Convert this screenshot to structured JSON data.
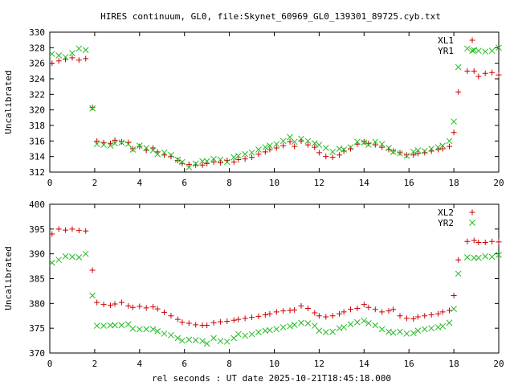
{
  "title": "HIRES continuum, GL0, file:Skynet_60969_GL0_139301_89725.cyb.txt",
  "xlabel": "rel seconds : UT date 2025-10-21T18:45:18.000",
  "colors": {
    "xl": "#cc0000",
    "yr": "#22bb22"
  },
  "chart_data": [
    {
      "type": "scatter",
      "ylabel": "Uncalibrated",
      "xlim": [
        0,
        20
      ],
      "ylim": [
        312,
        330
      ],
      "xticks": [
        0,
        2,
        4,
        6,
        8,
        10,
        12,
        14,
        16,
        18,
        20
      ],
      "yticks": [
        312,
        314,
        316,
        318,
        320,
        322,
        324,
        326,
        328,
        330
      ],
      "legend_position": "top-right",
      "series": [
        {
          "name": "XL1",
          "marker": "plus",
          "color": "#cc0000",
          "x": [
            0.1,
            0.4,
            0.7,
            1.0,
            1.3,
            1.6,
            1.9,
            2.1,
            2.4,
            2.7,
            2.9,
            3.2,
            3.5,
            3.7,
            4.0,
            4.3,
            4.6,
            4.8,
            5.1,
            5.4,
            5.7,
            5.9,
            6.2,
            6.5,
            6.8,
            7.0,
            7.3,
            7.6,
            7.9,
            8.2,
            8.4,
            8.7,
            9.0,
            9.3,
            9.6,
            9.8,
            10.1,
            10.4,
            10.7,
            10.9,
            11.2,
            11.5,
            11.8,
            12.0,
            12.3,
            12.6,
            12.9,
            13.1,
            13.4,
            13.7,
            14.0,
            14.2,
            14.5,
            14.8,
            15.1,
            15.3,
            15.6,
            15.9,
            16.2,
            16.4,
            16.7,
            17.0,
            17.3,
            17.5,
            17.8,
            18.0,
            18.2,
            18.6,
            18.9,
            19.1,
            19.4,
            19.7,
            20.0
          ],
          "y": [
            326.0,
            326.3,
            326.5,
            326.7,
            326.4,
            326.6,
            320.3,
            316.0,
            315.8,
            315.7,
            316.1,
            315.9,
            315.8,
            315.0,
            315.3,
            314.8,
            315.1,
            314.6,
            314.2,
            314.0,
            313.5,
            313.1,
            313.0,
            312.9,
            312.9,
            313.1,
            313.3,
            313.2,
            313.5,
            313.3,
            313.6,
            313.7,
            313.9,
            314.3,
            314.6,
            314.9,
            315.1,
            315.4,
            315.9,
            315.3,
            316.0,
            315.5,
            315.2,
            314.5,
            314.0,
            313.9,
            314.2,
            314.7,
            315.0,
            315.6,
            315.9,
            315.7,
            315.5,
            315.2,
            314.9,
            314.7,
            314.5,
            314.2,
            314.2,
            314.4,
            314.5,
            314.7,
            314.9,
            315.0,
            315.3,
            317.1,
            322.3,
            325.0,
            325.0,
            324.3,
            324.7,
            324.8,
            324.5
          ]
        },
        {
          "name": "YR1",
          "marker": "cross",
          "color": "#22bb22",
          "x": [
            0.1,
            0.4,
            0.7,
            1.0,
            1.3,
            1.6,
            1.9,
            2.1,
            2.4,
            2.7,
            2.9,
            3.2,
            3.5,
            3.7,
            4.0,
            4.3,
            4.6,
            4.8,
            5.1,
            5.4,
            5.7,
            5.9,
            6.2,
            6.5,
            6.8,
            7.0,
            7.3,
            7.6,
            7.9,
            8.2,
            8.4,
            8.7,
            9.0,
            9.3,
            9.6,
            9.8,
            10.1,
            10.4,
            10.7,
            10.9,
            11.2,
            11.5,
            11.8,
            12.0,
            12.3,
            12.6,
            12.9,
            13.1,
            13.4,
            13.7,
            14.0,
            14.2,
            14.5,
            14.8,
            15.1,
            15.3,
            15.6,
            15.9,
            16.2,
            16.4,
            16.7,
            17.0,
            17.3,
            17.5,
            17.8,
            18.0,
            18.2,
            18.6,
            18.9,
            19.1,
            19.4,
            19.7,
            20.0
          ],
          "y": [
            327.2,
            327.0,
            326.8,
            327.3,
            327.9,
            327.7,
            320.2,
            315.6,
            315.5,
            315.4,
            315.7,
            315.8,
            315.6,
            314.9,
            315.4,
            315.1,
            314.8,
            314.3,
            314.5,
            314.2,
            313.6,
            313.3,
            312.6,
            313.1,
            313.4,
            313.4,
            313.7,
            313.6,
            313.3,
            313.9,
            314.1,
            314.3,
            314.5,
            314.9,
            315.2,
            315.4,
            315.6,
            316.0,
            316.5,
            315.9,
            316.3,
            316.0,
            315.7,
            315.5,
            315.1,
            314.6,
            315.0,
            314.9,
            315.2,
            315.9,
            315.8,
            315.5,
            315.9,
            315.6,
            315.1,
            314.6,
            314.4,
            314.1,
            314.6,
            314.8,
            314.7,
            315.0,
            315.2,
            315.4,
            316.0,
            318.5,
            325.5,
            327.9,
            327.7,
            327.6,
            327.5,
            327.6,
            328.0
          ]
        }
      ]
    },
    {
      "type": "scatter",
      "ylabel": "Uncalibrated",
      "xlim": [
        0,
        20
      ],
      "ylim": [
        370,
        400
      ],
      "xticks": [
        0,
        2,
        4,
        6,
        8,
        10,
        12,
        14,
        16,
        18,
        20
      ],
      "yticks": [
        370,
        375,
        380,
        385,
        390,
        395,
        400
      ],
      "legend_position": "top-right",
      "series": [
        {
          "name": "XL2",
          "marker": "plus",
          "color": "#cc0000",
          "x": [
            0.1,
            0.4,
            0.7,
            1.0,
            1.3,
            1.6,
            1.9,
            2.1,
            2.4,
            2.7,
            2.9,
            3.2,
            3.5,
            3.7,
            4.0,
            4.3,
            4.6,
            4.8,
            5.1,
            5.4,
            5.7,
            5.9,
            6.2,
            6.5,
            6.8,
            7.0,
            7.3,
            7.6,
            7.9,
            8.2,
            8.4,
            8.7,
            9.0,
            9.3,
            9.6,
            9.8,
            10.1,
            10.4,
            10.7,
            10.9,
            11.2,
            11.5,
            11.8,
            12.0,
            12.3,
            12.6,
            12.9,
            13.1,
            13.4,
            13.7,
            14.0,
            14.2,
            14.5,
            14.8,
            15.1,
            15.3,
            15.6,
            15.9,
            16.2,
            16.4,
            16.7,
            17.0,
            17.3,
            17.5,
            17.8,
            18.0,
            18.2,
            18.6,
            18.9,
            19.1,
            19.4,
            19.7,
            20.0
          ],
          "y": [
            394.0,
            395.0,
            394.8,
            395.0,
            394.7,
            394.6,
            386.7,
            380.2,
            379.8,
            379.6,
            379.9,
            380.2,
            379.5,
            379.2,
            379.4,
            379.1,
            379.3,
            378.9,
            378.2,
            377.5,
            376.8,
            376.2,
            376.0,
            375.7,
            375.6,
            375.6,
            376.1,
            376.3,
            376.4,
            376.6,
            376.8,
            377.0,
            377.2,
            377.4,
            377.7,
            377.9,
            378.3,
            378.5,
            378.6,
            378.7,
            379.5,
            379.0,
            378.1,
            377.5,
            377.3,
            377.5,
            377.9,
            378.3,
            378.8,
            379.0,
            379.8,
            379.2,
            378.8,
            378.3,
            378.5,
            378.8,
            377.5,
            377.0,
            376.9,
            377.3,
            377.5,
            377.7,
            377.9,
            378.3,
            378.6,
            381.6,
            388.8,
            392.5,
            392.7,
            392.3,
            392.3,
            392.5,
            392.4
          ]
        },
        {
          "name": "YR2",
          "marker": "cross",
          "color": "#22bb22",
          "x": [
            0.1,
            0.4,
            0.7,
            1.0,
            1.3,
            1.6,
            1.9,
            2.1,
            2.4,
            2.7,
            2.9,
            3.2,
            3.5,
            3.7,
            4.0,
            4.3,
            4.6,
            4.8,
            5.1,
            5.4,
            5.7,
            5.9,
            6.2,
            6.5,
            6.8,
            7.0,
            7.3,
            7.6,
            7.9,
            8.2,
            8.4,
            8.7,
            9.0,
            9.3,
            9.6,
            9.8,
            10.1,
            10.4,
            10.7,
            10.9,
            11.2,
            11.5,
            11.8,
            12.0,
            12.3,
            12.6,
            12.9,
            13.1,
            13.4,
            13.7,
            14.0,
            14.2,
            14.5,
            14.8,
            15.1,
            15.3,
            15.6,
            15.9,
            16.2,
            16.4,
            16.7,
            17.0,
            17.3,
            17.5,
            17.8,
            18.0,
            18.2,
            18.6,
            18.9,
            19.1,
            19.4,
            19.7,
            20.0
          ],
          "y": [
            388.2,
            388.8,
            389.5,
            389.4,
            389.3,
            390.0,
            381.6,
            375.5,
            375.5,
            375.6,
            375.6,
            375.6,
            375.8,
            374.9,
            374.8,
            374.8,
            374.8,
            374.4,
            373.9,
            373.6,
            373.0,
            372.5,
            372.7,
            372.6,
            372.4,
            371.9,
            373.0,
            372.4,
            372.3,
            373.0,
            373.8,
            373.5,
            373.8,
            374.2,
            374.5,
            374.6,
            374.8,
            375.2,
            375.4,
            375.7,
            376.1,
            376.0,
            375.5,
            374.5,
            374.2,
            374.3,
            375.0,
            375.2,
            375.8,
            376.2,
            376.5,
            376.0,
            375.6,
            374.8,
            374.3,
            374.1,
            374.3,
            373.9,
            374.0,
            374.5,
            374.8,
            375.0,
            375.2,
            375.4,
            376.1,
            378.9,
            386.0,
            389.3,
            389.2,
            389.2,
            389.5,
            389.4,
            389.8
          ]
        }
      ]
    }
  ]
}
